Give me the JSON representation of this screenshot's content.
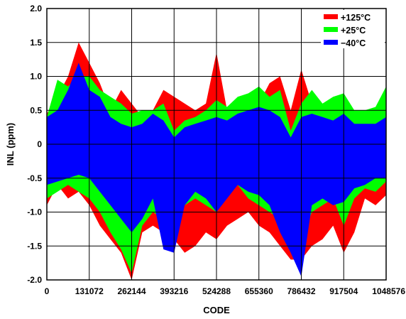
{
  "chart_data": {
    "type": "area",
    "title": "",
    "xlabel": "CODE",
    "ylabel": "INL (ppm)",
    "xlim": [
      0,
      1048576
    ],
    "ylim": [
      -2.0,
      2.0
    ],
    "x_ticks": [
      "0",
      "131072",
      "262144",
      "393216",
      "524288",
      "655360",
      "786432",
      "917504",
      "1048576"
    ],
    "y_ticks": [
      "2.0",
      "1.5",
      "1.0",
      "0.5",
      "0",
      "-0.5",
      "-1.0",
      "-1.5",
      "-2.0"
    ],
    "grid": true,
    "legend_position": "top-right",
    "x": [
      0,
      32768,
      65536,
      98304,
      131072,
      163840,
      196608,
      229376,
      262144,
      294912,
      327680,
      360448,
      393216,
      425984,
      458752,
      491520,
      524288,
      557056,
      589824,
      622592,
      655360,
      688128,
      720896,
      753664,
      786432,
      819200,
      851968,
      884736,
      917504,
      950272,
      983040,
      1015808,
      1048576
    ],
    "series": [
      {
        "name": "+125°C",
        "color": "#ff0000",
        "upper": [
          0.45,
          0.7,
          1.0,
          1.5,
          1.2,
          0.9,
          0.5,
          0.8,
          0.6,
          0.4,
          0.5,
          0.8,
          0.7,
          0.6,
          0.5,
          0.6,
          1.35,
          0.5,
          0.4,
          0.7,
          0.6,
          0.9,
          1.0,
          0.5,
          1.1,
          0.6,
          0.3,
          0.5,
          0.4,
          0.2,
          0.3,
          0.2,
          0.35
        ],
        "lower": [
          -0.9,
          -0.6,
          -0.8,
          -0.7,
          -0.9,
          -1.2,
          -1.4,
          -1.6,
          -2.0,
          -1.3,
          -1.2,
          -1.3,
          -1.4,
          -1.6,
          -1.5,
          -1.3,
          -1.4,
          -1.2,
          -1.1,
          -1.0,
          -1.2,
          -1.3,
          -1.5,
          -1.7,
          -1.7,
          -1.5,
          -1.4,
          -1.2,
          -1.6,
          -1.3,
          -0.8,
          -0.9,
          -0.75
        ]
      },
      {
        "name": "+25°C",
        "color": "#00ff00",
        "upper": [
          0.4,
          0.95,
          0.85,
          1.0,
          1.0,
          0.8,
          0.7,
          0.6,
          0.45,
          0.5,
          0.5,
          0.6,
          0.2,
          0.35,
          0.4,
          0.5,
          0.65,
          0.55,
          0.7,
          0.75,
          0.85,
          0.7,
          0.8,
          0.2,
          0.6,
          0.8,
          0.6,
          0.7,
          0.75,
          0.5,
          0.5,
          0.55,
          0.85
        ],
        "lower": [
          -0.8,
          -0.7,
          -0.6,
          -0.7,
          -0.8,
          -1.0,
          -1.3,
          -1.55,
          -1.9,
          -1.2,
          -1.0,
          -1.1,
          -1.0,
          -0.9,
          -0.8,
          -0.9,
          -1.0,
          -0.7,
          -0.6,
          -0.8,
          -0.9,
          -1.0,
          -1.1,
          -1.2,
          -1.4,
          -1.0,
          -0.9,
          -0.8,
          -1.2,
          -0.8,
          -0.65,
          -0.7,
          -0.55
        ]
      },
      {
        "name": "−40°C",
        "color": "#0000ff",
        "upper": [
          0.4,
          0.5,
          0.8,
          1.2,
          0.8,
          0.7,
          0.4,
          0.3,
          0.25,
          0.3,
          0.45,
          0.35,
          0.1,
          0.25,
          0.3,
          0.35,
          0.4,
          0.35,
          0.45,
          0.5,
          0.55,
          0.5,
          0.4,
          0.1,
          0.4,
          0.45,
          0.4,
          0.35,
          0.45,
          0.3,
          0.3,
          0.3,
          0.4
        ],
        "lower": [
          -0.6,
          -0.55,
          -0.5,
          -0.45,
          -0.5,
          -0.7,
          -0.9,
          -1.1,
          -1.3,
          -1.1,
          -0.8,
          -1.55,
          -1.6,
          -0.9,
          -0.7,
          -0.8,
          -1.0,
          -0.8,
          -0.6,
          -0.7,
          -0.75,
          -0.9,
          -1.3,
          -1.6,
          -1.95,
          -0.9,
          -0.8,
          -0.9,
          -0.85,
          -0.65,
          -0.6,
          -0.5,
          -0.5
        ]
      }
    ]
  }
}
